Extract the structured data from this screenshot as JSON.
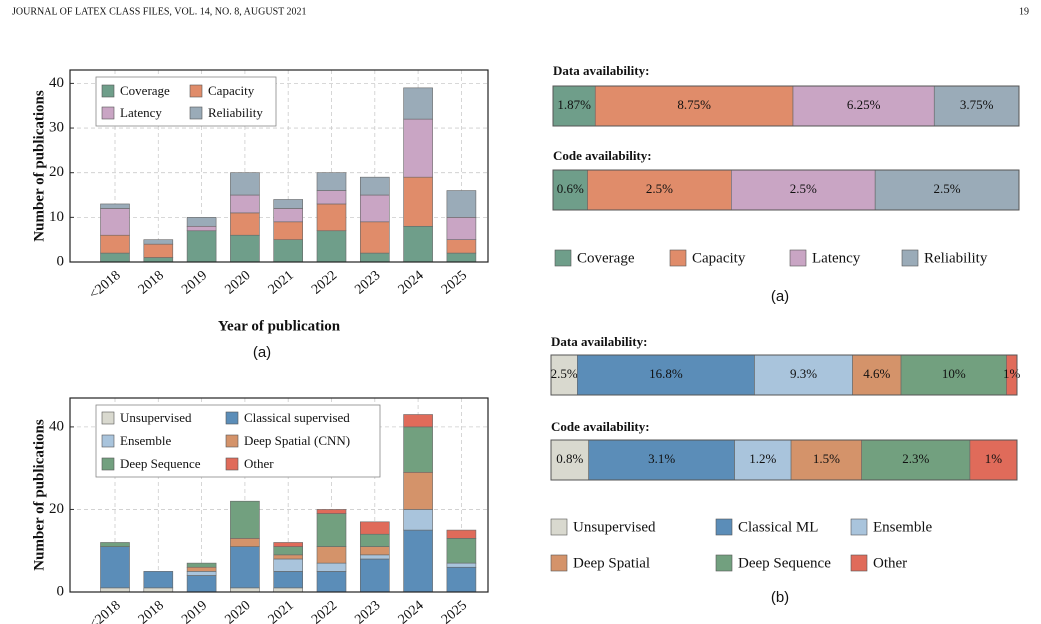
{
  "header": {
    "journal": "JOURNAL OF LATEX CLASS FILES, VOL. 14, NO. 8, AUGUST 2021",
    "page": "19"
  },
  "chart_data": [
    {
      "type": "bar",
      "stacked": true,
      "ylabel": "Number of publications",
      "xlabel": "Year of publication",
      "caption": "(a)",
      "categories": [
        "<2018",
        "2018",
        "2019",
        "2020",
        "2021",
        "2022",
        "2023",
        "2024",
        "2025"
      ],
      "series": [
        {
          "name": "Coverage",
          "color": "#6f9e8a",
          "values": [
            2,
            1,
            7,
            6,
            5,
            7,
            2,
            8,
            2
          ]
        },
        {
          "name": "Capacity",
          "color": "#e08c6a",
          "values": [
            4,
            3,
            0,
            5,
            4,
            6,
            7,
            11,
            3
          ]
        },
        {
          "name": "Latency",
          "color": "#c9a5c4",
          "values": [
            6,
            0,
            1,
            4,
            3,
            3,
            6,
            13,
            5
          ]
        },
        {
          "name": "Reliability",
          "color": "#9aabb8",
          "values": [
            1,
            1,
            2,
            5,
            2,
            4,
            4,
            7,
            6
          ]
        }
      ],
      "ylim": [
        0,
        43
      ],
      "yticks": [
        0,
        10,
        20,
        30,
        40
      ],
      "grid": true,
      "legend": "upper left"
    },
    {
      "type": "bar",
      "stacked": true,
      "ylabel": "Number of publications",
      "categories": [
        "<2018",
        "2018",
        "2019",
        "2020",
        "2021",
        "2022",
        "2023",
        "2024",
        "2025"
      ],
      "series": [
        {
          "name": "Unsupervised",
          "color": "#d9d9cf",
          "values": [
            1,
            1,
            0,
            1,
            1,
            0,
            0,
            0,
            0
          ]
        },
        {
          "name": "Classical supervised",
          "color": "#5b8db8",
          "values": [
            10,
            4,
            4,
            10,
            4,
            5,
            8,
            15,
            6
          ]
        },
        {
          "name": "Ensemble",
          "color": "#a9c4dc",
          "values": [
            0,
            0,
            1,
            0,
            3,
            2,
            1,
            5,
            1
          ]
        },
        {
          "name": "Deep Spatial (CNN)",
          "color": "#d4936a",
          "values": [
            0,
            0,
            1,
            2,
            1,
            4,
            2,
            9,
            0
          ]
        },
        {
          "name": "Deep Sequence",
          "color": "#72a07f",
          "values": [
            1,
            0,
            1,
            9,
            2,
            8,
            3,
            11,
            6
          ]
        },
        {
          "name": "Other",
          "color": "#e06b5a",
          "values": [
            0,
            0,
            0,
            0,
            1,
            1,
            3,
            3,
            2
          ]
        }
      ],
      "ylim": [
        0,
        47
      ],
      "yticks": [
        0,
        20,
        40
      ],
      "grid": true,
      "legend": "upper left"
    },
    {
      "type": "share",
      "caption": "(a)",
      "categories": [
        "Data availability:",
        "Code availability:"
      ],
      "series": [
        {
          "name": "Coverage",
          "color": "#6f9e8a",
          "values": [
            1.87,
            0.6
          ],
          "value_labels": [
            "1.87%",
            "0.6%"
          ]
        },
        {
          "name": "Capacity",
          "color": "#e08c6a",
          "values": [
            8.75,
            2.5
          ],
          "value_labels": [
            "8.75%",
            "2.5%"
          ]
        },
        {
          "name": "Latency",
          "color": "#c9a5c4",
          "values": [
            6.25,
            2.5
          ],
          "value_labels": [
            "6.25%",
            "2.5%"
          ]
        },
        {
          "name": "Reliability",
          "color": "#9aabb8",
          "values": [
            3.75,
            2.5
          ],
          "value_labels": [
            "3.75%",
            "2.5%"
          ]
        }
      ],
      "legend": "below"
    },
    {
      "type": "share",
      "caption": "(b)",
      "categories": [
        "Data availability:",
        "Code availability:"
      ],
      "series": [
        {
          "name": "Unsupervised",
          "color": "#d9d9cf",
          "values": [
            2.5,
            0.8
          ],
          "value_labels": [
            "2.5%",
            "0.8%"
          ]
        },
        {
          "name": "Classical ML",
          "color": "#5b8db8",
          "values": [
            16.8,
            3.1
          ],
          "value_labels": [
            "16.8%",
            "3.1%"
          ]
        },
        {
          "name": "Ensemble",
          "color": "#a9c4dc",
          "values": [
            9.3,
            1.2
          ],
          "value_labels": [
            "9.3%",
            "1.2%"
          ]
        },
        {
          "name": "Deep Spatial",
          "color": "#d4936a",
          "values": [
            4.6,
            1.5
          ],
          "value_labels": [
            "4.6%",
            "1.5%"
          ]
        },
        {
          "name": "Deep Sequence",
          "color": "#72a07f",
          "values": [
            10,
            2.3
          ],
          "value_labels": [
            "10%",
            "2.3%"
          ]
        },
        {
          "name": "Other",
          "color": "#e06b5a",
          "values": [
            1,
            1
          ],
          "value_labels": [
            "1%",
            "1%"
          ]
        }
      ],
      "legend": "below"
    }
  ]
}
